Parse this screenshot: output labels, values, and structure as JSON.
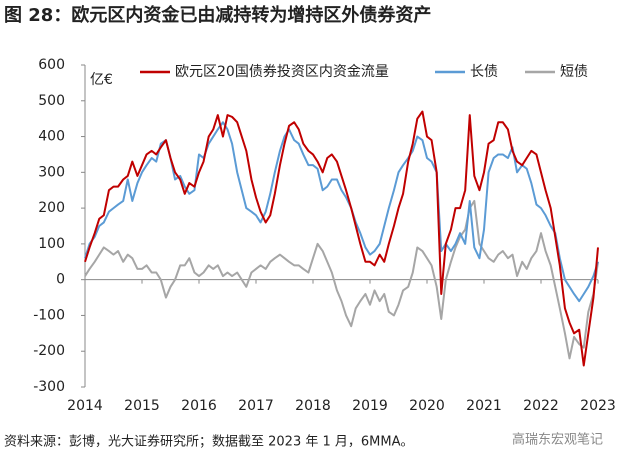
{
  "chart_data": {
    "type": "line",
    "title": "图 28：欧元区内资金已由减持转为增持区外债券资产",
    "y_label": "亿€",
    "source": "资料来源：彭博，光大证券研究所；数据截至 2023 年 1 月，6MMA。",
    "watermark": "高瑞东宏观笔记",
    "x": [
      2014.0,
      2014.08,
      2014.17,
      2014.25,
      2014.33,
      2014.42,
      2014.5,
      2014.58,
      2014.67,
      2014.75,
      2014.83,
      2014.92,
      2015.0,
      2015.08,
      2015.17,
      2015.25,
      2015.33,
      2015.42,
      2015.5,
      2015.58,
      2015.67,
      2015.75,
      2015.83,
      2015.92,
      2016.0,
      2016.08,
      2016.17,
      2016.25,
      2016.33,
      2016.42,
      2016.5,
      2016.58,
      2016.67,
      2016.75,
      2016.83,
      2016.92,
      2017.0,
      2017.08,
      2017.17,
      2017.25,
      2017.33,
      2017.42,
      2017.5,
      2017.58,
      2017.67,
      2017.75,
      2017.83,
      2017.92,
      2018.0,
      2018.08,
      2018.17,
      2018.25,
      2018.33,
      2018.42,
      2018.5,
      2018.58,
      2018.67,
      2018.75,
      2018.83,
      2018.92,
      2019.0,
      2019.08,
      2019.17,
      2019.25,
      2019.33,
      2019.42,
      2019.5,
      2019.58,
      2019.67,
      2019.75,
      2019.83,
      2019.92,
      2020.0,
      2020.08,
      2020.17,
      2020.25,
      2020.33,
      2020.42,
      2020.5,
      2020.58,
      2020.67,
      2020.75,
      2020.83,
      2020.92,
      2021.0,
      2021.08,
      2021.17,
      2021.25,
      2021.33,
      2021.42,
      2021.5,
      2021.58,
      2021.67,
      2021.75,
      2021.83,
      2021.92,
      2022.0,
      2022.08,
      2022.17,
      2022.25,
      2022.33,
      2022.42,
      2022.5,
      2022.58,
      2022.67,
      2022.75,
      2022.83,
      2022.92,
      2023.0
    ],
    "series": [
      {
        "name": "欧元区20国债券投资区内资金流量",
        "color": "#c00000",
        "values": [
          50,
          90,
          130,
          170,
          180,
          250,
          260,
          260,
          280,
          290,
          330,
          290,
          320,
          350,
          360,
          350,
          370,
          390,
          340,
          300,
          280,
          240,
          270,
          260,
          300,
          330,
          400,
          420,
          460,
          400,
          460,
          455,
          440,
          400,
          360,
          280,
          230,
          190,
          160,
          180,
          240,
          320,
          380,
          430,
          440,
          420,
          380,
          360,
          350,
          330,
          300,
          340,
          350,
          330,
          290,
          250,
          200,
          150,
          100,
          50,
          50,
          40,
          70,
          50,
          100,
          150,
          200,
          240,
          330,
          380,
          450,
          470,
          400,
          390,
          300,
          -40,
          100,
          140,
          200,
          200,
          250,
          460,
          290,
          250,
          300,
          380,
          390,
          440,
          440,
          420,
          360,
          330,
          320,
          340,
          360,
          350,
          300,
          250,
          200,
          120,
          40,
          -80,
          -120,
          -150,
          -140,
          -240,
          -150,
          -50,
          90
        ]
      },
      {
        "name": "长债",
        "color": "#5b9bd5",
        "values": [
          60,
          100,
          120,
          150,
          160,
          190,
          200,
          210,
          220,
          280,
          220,
          270,
          300,
          320,
          340,
          330,
          380,
          390,
          340,
          280,
          290,
          260,
          240,
          250,
          350,
          340,
          380,
          400,
          420,
          440,
          420,
          380,
          300,
          250,
          200,
          190,
          180,
          160,
          190,
          240,
          300,
          360,
          400,
          420,
          390,
          380,
          350,
          320,
          320,
          310,
          250,
          260,
          280,
          280,
          250,
          230,
          200,
          160,
          130,
          90,
          70,
          80,
          100,
          150,
          200,
          250,
          300,
          320,
          340,
          360,
          400,
          390,
          340,
          330,
          300,
          80,
          100,
          80,
          100,
          130,
          100,
          220,
          90,
          60,
          140,
          300,
          340,
          350,
          350,
          340,
          370,
          300,
          320,
          310,
          270,
          210,
          200,
          180,
          150,
          130,
          60,
          0,
          -20,
          -40,
          -60,
          -40,
          -20,
          10,
          50
        ]
      },
      {
        "name": "短债",
        "color": "#a6a6a6",
        "values": [
          10,
          30,
          50,
          70,
          90,
          80,
          70,
          80,
          50,
          70,
          60,
          30,
          30,
          40,
          20,
          20,
          0,
          -50,
          -20,
          0,
          40,
          40,
          60,
          20,
          10,
          20,
          40,
          30,
          40,
          10,
          20,
          10,
          20,
          0,
          -20,
          20,
          30,
          40,
          30,
          50,
          60,
          70,
          60,
          50,
          40,
          40,
          30,
          20,
          60,
          100,
          80,
          50,
          20,
          -30,
          -60,
          -100,
          -130,
          -80,
          -60,
          -40,
          -70,
          -30,
          -60,
          -40,
          -90,
          -100,
          -70,
          -30,
          -20,
          20,
          90,
          80,
          60,
          40,
          -20,
          -110,
          0,
          50,
          90,
          120,
          140,
          200,
          220,
          100,
          80,
          60,
          50,
          70,
          80,
          60,
          70,
          10,
          50,
          30,
          60,
          80,
          130,
          80,
          40,
          -20,
          -80,
          -150,
          -220,
          -160,
          -180,
          -190,
          -90,
          -40,
          50
        ]
      }
    ],
    "xlim": [
      2014,
      2023
    ],
    "xticks": [
      2014,
      2015,
      2016,
      2017,
      2018,
      2019,
      2020,
      2021,
      2022,
      2023
    ],
    "ylim": [
      -300,
      600
    ],
    "yticks": [
      -300,
      -200,
      -100,
      0,
      100,
      200,
      300,
      400,
      500,
      600
    ]
  }
}
